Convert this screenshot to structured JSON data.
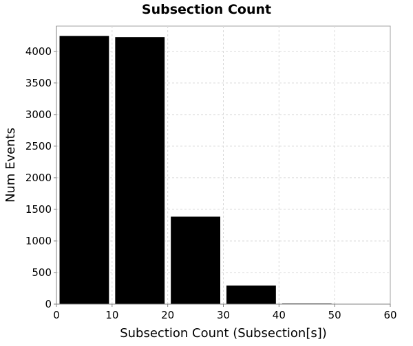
{
  "chart_data": {
    "type": "bar",
    "title": "Subsection Count",
    "xlabel": "Subsection Count (Subsection[s])",
    "ylabel": "Num Events",
    "xlim": [
      0,
      60
    ],
    "ylim": [
      0,
      4400
    ],
    "x_ticks": [
      "0",
      "10",
      "20",
      "30",
      "40",
      "50",
      "60"
    ],
    "y_ticks": [
      "0",
      "500",
      "1000",
      "1500",
      "2000",
      "2500",
      "3000",
      "3500",
      "4000"
    ],
    "bins": [
      {
        "x0": 0,
        "x1": 10,
        "value": 4250
      },
      {
        "x0": 10,
        "x1": 20,
        "value": 4230
      },
      {
        "x0": 20,
        "x1": 30,
        "value": 1390
      },
      {
        "x0": 30,
        "x1": 40,
        "value": 300
      },
      {
        "x0": 40,
        "x1": 50,
        "value": 15
      },
      {
        "x0": 50,
        "x1": 60,
        "value": 5
      }
    ],
    "grid": true,
    "colors": {
      "bar": "#000000",
      "grid": "#d9d9d9",
      "frame": "#a0a0a0"
    }
  }
}
